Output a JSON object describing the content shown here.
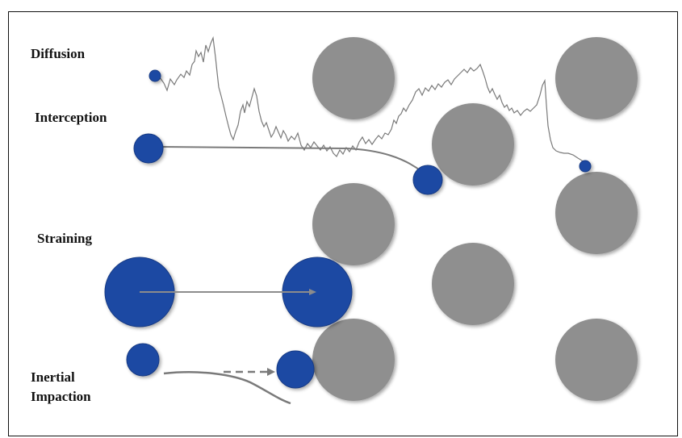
{
  "labels": {
    "diffusion": "Diffusion",
    "interception": "Interception",
    "straining": "Straining",
    "inertial_line1": "Inertial",
    "inertial_line2": "Impaction"
  },
  "colors": {
    "collector": "#8f8f8f",
    "particle": "#1f4aa3",
    "particle_edge": "#173a85",
    "path": "#7a7a7a",
    "border": "#111111"
  }
}
